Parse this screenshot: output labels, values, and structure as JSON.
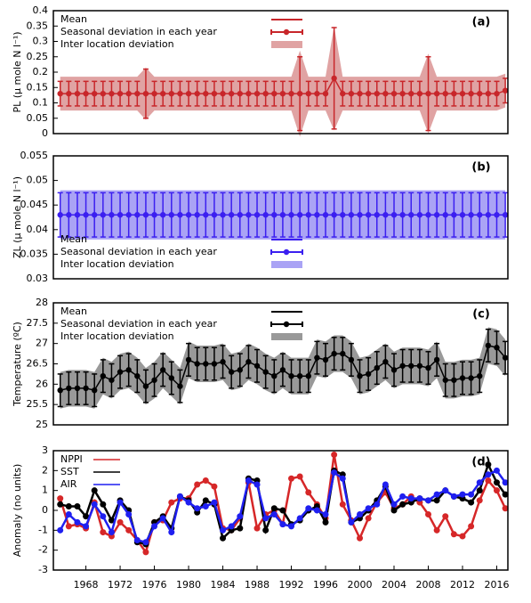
{
  "chart_data": [
    {
      "type": "errorbar",
      "label": "(a)",
      "ylabel": "PL (μ mole N l⁻¹)",
      "legend": "upper left",
      "xlim": [
        1964.2,
        2017.3
      ],
      "ylim": [
        0,
        0.4
      ],
      "yticks": [
        0,
        0.05,
        0.1,
        0.15,
        0.2,
        0.25,
        0.3,
        0.35,
        0.4
      ],
      "x": [
        1965,
        1966,
        1967,
        1968,
        1969,
        1970,
        1971,
        1972,
        1973,
        1974,
        1975,
        1976,
        1977,
        1978,
        1979,
        1980,
        1981,
        1982,
        1983,
        1984,
        1985,
        1986,
        1987,
        1988,
        1989,
        1990,
        1991,
        1992,
        1993,
        1994,
        1995,
        1996,
        1997,
        1998,
        1999,
        2000,
        2001,
        2002,
        2003,
        2004,
        2005,
        2006,
        2007,
        2008,
        2009,
        2010,
        2011,
        2012,
        2013,
        2014,
        2015,
        2016,
        2017
      ],
      "series": [
        {
          "name": "Mean",
          "color": "#c8262a",
          "values": [
            0.13,
            0.13,
            0.13,
            0.13,
            0.13,
            0.13,
            0.13,
            0.13,
            0.13,
            0.13,
            0.13,
            0.13,
            0.13,
            0.13,
            0.13,
            0.13,
            0.13,
            0.13,
            0.13,
            0.13,
            0.13,
            0.13,
            0.13,
            0.13,
            0.13,
            0.13,
            0.13,
            0.13,
            0.13,
            0.13,
            0.13,
            0.13,
            0.18,
            0.13,
            0.13,
            0.13,
            0.13,
            0.13,
            0.13,
            0.13,
            0.13,
            0.13,
            0.13,
            0.13,
            0.13,
            0.13,
            0.13,
            0.13,
            0.13,
            0.13,
            0.13,
            0.13,
            0.14
          ]
        },
        {
          "name": "Seasonal deviation in each year",
          "color": "#c8262a",
          "values": [
            0.04,
            0.04,
            0.04,
            0.04,
            0.04,
            0.04,
            0.04,
            0.04,
            0.04,
            0.04,
            0.08,
            0.04,
            0.04,
            0.04,
            0.04,
            0.04,
            0.04,
            0.04,
            0.04,
            0.04,
            0.04,
            0.04,
            0.04,
            0.04,
            0.04,
            0.04,
            0.04,
            0.04,
            0.12,
            0.04,
            0.04,
            0.04,
            0.165,
            0.04,
            0.04,
            0.04,
            0.04,
            0.04,
            0.04,
            0.04,
            0.04,
            0.04,
            0.04,
            0.12,
            0.04,
            0.04,
            0.04,
            0.04,
            0.04,
            0.04,
            0.04,
            0.04,
            0.04
          ]
        },
        {
          "name": "Inter location deviation",
          "color": "#e0a3a3",
          "values": [
            0.055,
            0.055,
            0.055,
            0.055,
            0.055,
            0.055,
            0.055,
            0.055,
            0.055,
            0.055,
            0.085,
            0.055,
            0.055,
            0.055,
            0.055,
            0.055,
            0.055,
            0.055,
            0.055,
            0.055,
            0.055,
            0.055,
            0.055,
            0.055,
            0.055,
            0.055,
            0.055,
            0.055,
            0.14,
            0.055,
            0.055,
            0.055,
            0.17,
            0.055,
            0.055,
            0.055,
            0.055,
            0.055,
            0.055,
            0.055,
            0.055,
            0.055,
            0.055,
            0.13,
            0.055,
            0.055,
            0.055,
            0.055,
            0.055,
            0.055,
            0.055,
            0.055,
            0.055
          ]
        }
      ]
    },
    {
      "type": "errorbar",
      "label": "(b)",
      "ylabel": "ZL (μ mole N l⁻¹)",
      "legend": "lower left",
      "xlim": [
        1964.2,
        2017.3
      ],
      "ylim": [
        0.03,
        0.055
      ],
      "yticks": [
        0.03,
        0.035,
        0.04,
        0.045,
        0.05,
        0.055
      ],
      "x": [
        1965,
        1966,
        1967,
        1968,
        1969,
        1970,
        1971,
        1972,
        1973,
        1974,
        1975,
        1976,
        1977,
        1978,
        1979,
        1980,
        1981,
        1982,
        1983,
        1984,
        1985,
        1986,
        1987,
        1988,
        1989,
        1990,
        1991,
        1992,
        1993,
        1994,
        1995,
        1996,
        1997,
        1998,
        1999,
        2000,
        2001,
        2002,
        2003,
        2004,
        2005,
        2006,
        2007,
        2008,
        2009,
        2010,
        2011,
        2012,
        2013,
        2014,
        2015,
        2016,
        2017
      ],
      "series": [
        {
          "name": "Mean",
          "color": "#3b1ff0",
          "values": [
            0.043,
            0.043,
            0.043,
            0.043,
            0.043,
            0.043,
            0.043,
            0.043,
            0.043,
            0.043,
            0.043,
            0.043,
            0.043,
            0.043,
            0.043,
            0.043,
            0.043,
            0.043,
            0.043,
            0.043,
            0.043,
            0.043,
            0.043,
            0.043,
            0.043,
            0.043,
            0.043,
            0.043,
            0.043,
            0.043,
            0.043,
            0.043,
            0.043,
            0.043,
            0.043,
            0.043,
            0.043,
            0.043,
            0.043,
            0.043,
            0.043,
            0.043,
            0.043,
            0.043,
            0.043,
            0.043,
            0.043,
            0.043,
            0.043,
            0.043,
            0.043,
            0.043,
            0.043
          ]
        },
        {
          "name": "Seasonal deviation in each year",
          "color": "#3b1ff0",
          "values": [
            0.0045,
            0.0045,
            0.0045,
            0.0045,
            0.0045,
            0.0045,
            0.0045,
            0.0045,
            0.0045,
            0.0045,
            0.0045,
            0.0045,
            0.0045,
            0.0045,
            0.0045,
            0.0045,
            0.0045,
            0.0045,
            0.0045,
            0.0045,
            0.0045,
            0.0045,
            0.0045,
            0.0045,
            0.0045,
            0.0045,
            0.0045,
            0.0045,
            0.0045,
            0.0045,
            0.0045,
            0.0045,
            0.0045,
            0.0045,
            0.0045,
            0.0045,
            0.0045,
            0.0045,
            0.0045,
            0.0045,
            0.0045,
            0.0045,
            0.0045,
            0.0045,
            0.0045,
            0.0045,
            0.0045,
            0.0045,
            0.0045,
            0.0045,
            0.0045,
            0.0045,
            0.0045
          ]
        },
        {
          "name": "Inter location deviation",
          "color": "#aaa3f5",
          "values": [
            0.005,
            0.005,
            0.005,
            0.005,
            0.005,
            0.005,
            0.005,
            0.005,
            0.005,
            0.005,
            0.005,
            0.005,
            0.005,
            0.005,
            0.005,
            0.005,
            0.005,
            0.005,
            0.005,
            0.005,
            0.005,
            0.005,
            0.005,
            0.005,
            0.005,
            0.005,
            0.005,
            0.005,
            0.005,
            0.005,
            0.005,
            0.005,
            0.005,
            0.005,
            0.005,
            0.005,
            0.005,
            0.005,
            0.005,
            0.005,
            0.005,
            0.005,
            0.005,
            0.005,
            0.005,
            0.005,
            0.005,
            0.005,
            0.005,
            0.005,
            0.005,
            0.005,
            0.005
          ]
        }
      ]
    },
    {
      "type": "errorbar",
      "label": "(c)",
      "ylabel": "Temperature (ºC)",
      "legend": "upper left",
      "xlim": [
        1964.2,
        2017.3
      ],
      "ylim": [
        25,
        28
      ],
      "yticks": [
        25,
        25.5,
        26,
        26.5,
        27,
        27.5,
        28
      ],
      "x": [
        1965,
        1966,
        1967,
        1968,
        1969,
        1970,
        1971,
        1972,
        1973,
        1974,
        1975,
        1976,
        1977,
        1978,
        1979,
        1980,
        1981,
        1982,
        1983,
        1984,
        1985,
        1986,
        1987,
        1988,
        1989,
        1990,
        1991,
        1992,
        1993,
        1994,
        1995,
        1996,
        1997,
        1998,
        1999,
        2000,
        2001,
        2002,
        2003,
        2004,
        2005,
        2006,
        2007,
        2008,
        2009,
        2010,
        2011,
        2012,
        2013,
        2014,
        2015,
        2016,
        2017
      ],
      "series": [
        {
          "name": "Mean",
          "color": "#000000",
          "values": [
            25.85,
            25.9,
            25.9,
            25.9,
            25.85,
            26.2,
            26.1,
            26.3,
            26.35,
            26.2,
            25.95,
            26.1,
            26.35,
            26.15,
            25.95,
            26.6,
            26.5,
            26.5,
            26.5,
            26.55,
            26.3,
            26.35,
            26.55,
            26.45,
            26.3,
            26.2,
            26.35,
            26.2,
            26.2,
            26.2,
            26.65,
            26.6,
            26.75,
            26.75,
            26.6,
            26.2,
            26.25,
            26.4,
            26.55,
            26.35,
            26.45,
            26.45,
            26.45,
            26.4,
            26.6,
            26.1,
            26.1,
            26.15,
            26.15,
            26.2,
            26.95,
            26.9,
            26.65
          ]
        },
        {
          "name": "Seasonal deviation in each year",
          "color": "#000000",
          "values": [
            0.4,
            0.4,
            0.4,
            0.4,
            0.4,
            0.4,
            0.4,
            0.4,
            0.4,
            0.4,
            0.4,
            0.4,
            0.4,
            0.4,
            0.4,
            0.4,
            0.4,
            0.4,
            0.4,
            0.4,
            0.4,
            0.4,
            0.4,
            0.4,
            0.4,
            0.4,
            0.4,
            0.4,
            0.4,
            0.4,
            0.4,
            0.4,
            0.4,
            0.4,
            0.4,
            0.4,
            0.4,
            0.4,
            0.4,
            0.4,
            0.4,
            0.4,
            0.4,
            0.4,
            0.4,
            0.4,
            0.4,
            0.4,
            0.4,
            0.4,
            0.4,
            0.4,
            0.4
          ]
        },
        {
          "name": "Inter location deviation",
          "color": "#999999",
          "values": [
            0.45,
            0.45,
            0.45,
            0.45,
            0.45,
            0.45,
            0.45,
            0.45,
            0.45,
            0.45,
            0.45,
            0.45,
            0.45,
            0.45,
            0.45,
            0.45,
            0.45,
            0.45,
            0.45,
            0.45,
            0.45,
            0.45,
            0.45,
            0.45,
            0.45,
            0.45,
            0.45,
            0.45,
            0.45,
            0.45,
            0.45,
            0.45,
            0.45,
            0.45,
            0.45,
            0.45,
            0.45,
            0.45,
            0.45,
            0.45,
            0.45,
            0.45,
            0.45,
            0.45,
            0.45,
            0.45,
            0.45,
            0.45,
            0.45,
            0.45,
            0.45,
            0.45,
            0.45
          ]
        }
      ]
    },
    {
      "type": "line",
      "label": "(d)",
      "ylabel": "Anomaly (no units)",
      "legend": "upper left",
      "xlim": [
        1964.2,
        2017.3
      ],
      "ylim": [
        -3,
        3
      ],
      "yticks": [
        -3,
        -2,
        -1,
        0,
        1,
        2,
        3
      ],
      "xticks": [
        1968,
        1972,
        1976,
        1980,
        1984,
        1988,
        1992,
        1996,
        2000,
        2004,
        2008,
        2012,
        2016
      ],
      "x": [
        1965,
        1966,
        1967,
        1968,
        1969,
        1970,
        1971,
        1972,
        1973,
        1974,
        1975,
        1976,
        1977,
        1978,
        1979,
        1980,
        1981,
        1982,
        1983,
        1984,
        1985,
        1986,
        1987,
        1988,
        1989,
        1990,
        1991,
        1992,
        1993,
        1994,
        1995,
        1996,
        1997,
        1998,
        1999,
        2000,
        2001,
        2002,
        2003,
        2004,
        2005,
        2006,
        2007,
        2008,
        2009,
        2010,
        2011,
        2012,
        2013,
        2014,
        2015,
        2016,
        2017
      ],
      "series": [
        {
          "name": "NPPI",
          "color": "#d62728",
          "values": [
            0.6,
            -0.8,
            -0.7,
            -0.9,
            0.4,
            -1.1,
            -1.3,
            -0.6,
            -1.0,
            -1.5,
            -2.1,
            -0.6,
            -0.5,
            0.4,
            0.6,
            0.6,
            1.3,
            1.5,
            1.2,
            -0.9,
            -1.0,
            -0.4,
            1.4,
            -0.9,
            -0.2,
            0.0,
            -0.7,
            1.6,
            1.7,
            0.9,
            0.3,
            -0.4,
            2.8,
            0.3,
            -0.5,
            -1.4,
            -0.4,
            0.4,
            0.9,
            0.1,
            0.3,
            0.7,
            0.4,
            -0.2,
            -1.0,
            -0.3,
            -1.2,
            -1.3,
            -0.8,
            0.5,
            1.5,
            1.0,
            0.1
          ]
        },
        {
          "name": "SST",
          "color": "#000000",
          "values": [
            0.3,
            0.2,
            0.2,
            -0.3,
            1.0,
            0.3,
            -0.5,
            0.5,
            0.0,
            -1.6,
            -1.7,
            -0.6,
            -0.3,
            -0.9,
            0.7,
            0.5,
            -0.1,
            0.5,
            0.3,
            -1.4,
            -1.0,
            -0.9,
            1.6,
            1.5,
            -1.0,
            0.1,
            0.0,
            -0.7,
            -0.5,
            0.0,
            0.2,
            -0.6,
            2.0,
            1.8,
            -0.6,
            -0.4,
            0.0,
            0.5,
            1.2,
            0.0,
            0.3,
            0.4,
            0.6,
            0.5,
            0.5,
            1.0,
            0.7,
            0.6,
            0.4,
            1.0,
            2.3,
            1.4,
            0.8
          ]
        },
        {
          "name": "AIR",
          "color": "#1f1ff0",
          "values": [
            -1.0,
            -0.2,
            -0.6,
            -0.8,
            0.3,
            -0.3,
            -1.1,
            0.4,
            -0.2,
            -1.5,
            -1.6,
            -0.8,
            -0.4,
            -1.1,
            0.7,
            0.4,
            0.1,
            0.2,
            0.4,
            -1.0,
            -0.8,
            -0.3,
            1.5,
            1.3,
            -0.4,
            -0.2,
            -0.7,
            -0.8,
            -0.4,
            0.1,
            0.0,
            -0.2,
            1.9,
            1.6,
            -0.6,
            -0.2,
            0.1,
            0.3,
            1.3,
            0.3,
            0.7,
            0.6,
            0.6,
            0.5,
            0.8,
            1.0,
            0.7,
            0.8,
            0.8,
            1.4,
            1.8,
            2.0,
            1.4
          ]
        }
      ]
    }
  ]
}
